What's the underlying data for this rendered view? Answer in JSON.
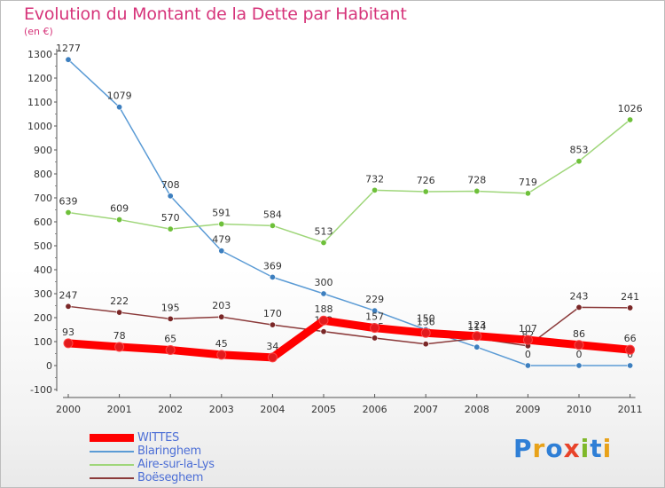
{
  "header": {
    "title": "Evolution du Montant de la Dette par Habitant",
    "subtitle": "(en €)"
  },
  "brand": {
    "text": "Proxiti",
    "colors": [
      "#2f7fd6",
      "#e8a21a",
      "#2f7fd6",
      "#e8432a",
      "#7fb82a",
      "#2f7fd6",
      "#e8a21a"
    ]
  },
  "chart_data": {
    "type": "line",
    "x": [
      "2000",
      "2001",
      "2002",
      "2003",
      "2004",
      "2005",
      "2006",
      "2007",
      "2008",
      "2009",
      "2010",
      "2011"
    ],
    "ylim": [
      -100,
      1300
    ],
    "yticks": [
      -100,
      0,
      100,
      200,
      300,
      400,
      500,
      600,
      700,
      800,
      900,
      1000,
      1100,
      1200,
      1300
    ],
    "grid": false,
    "legend_position": "bottom-left",
    "series": [
      {
        "name": "Blaringhem",
        "color": "#5b9bd5",
        "marker": "#3d7fbf",
        "values": [
          1277,
          1079,
          708,
          479,
          369,
          300,
          229,
          150,
          77,
          0,
          0,
          0
        ],
        "labels": [
          "1277",
          "1079",
          "708",
          "479",
          "369",
          "300",
          "229",
          "150",
          "",
          "0",
          "0",
          "0"
        ]
      },
      {
        "name": "Aire-sur-la-Lys",
        "color": "#9fd67a",
        "marker": "#6ec03a",
        "values": [
          639,
          609,
          570,
          591,
          584,
          513,
          732,
          726,
          728,
          719,
          853,
          1026
        ],
        "labels": [
          "639",
          "609",
          "570",
          "591",
          "584",
          "513",
          "732",
          "726",
          "728",
          "719",
          "853",
          "1026"
        ]
      },
      {
        "name": "Boëseghem",
        "color": "#8b3a3a",
        "marker": "#7a2727",
        "values": [
          247,
          222,
          195,
          203,
          170,
          142,
          115,
          90,
          114,
          82,
          243,
          241
        ],
        "labels": [
          "247",
          "222",
          "195",
          "203",
          "170",
          "142",
          "115",
          "90",
          "114",
          "82",
          "243",
          "241"
        ]
      },
      {
        "name": "WITTES",
        "color": "#ff0000",
        "marker": "#e31a1c",
        "values": [
          93,
          78,
          65,
          45,
          34,
          188,
          157,
          136,
          123,
          107,
          86,
          66
        ],
        "labels": [
          "93",
          "78",
          "65",
          "45",
          "34",
          "188",
          "157",
          "136",
          "123",
          "107",
          "86",
          "66"
        ]
      }
    ]
  },
  "legend": {
    "items": [
      {
        "label": "WITTES",
        "color": "#ff0000",
        "thickness": 9
      },
      {
        "label": "Blaringhem",
        "color": "#5b9bd5",
        "thickness": 2
      },
      {
        "label": "Aire-sur-la-Lys",
        "color": "#9fd67a",
        "thickness": 2
      },
      {
        "label": "Boëseghem",
        "color": "#8b3a3a",
        "thickness": 2
      }
    ]
  }
}
